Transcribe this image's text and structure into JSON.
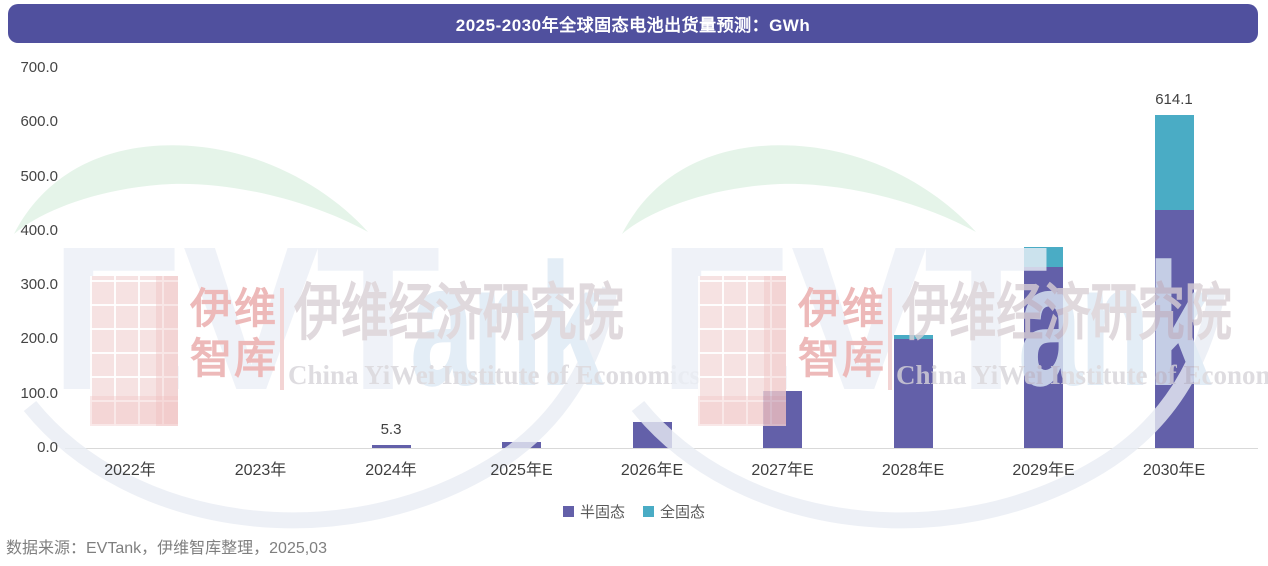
{
  "title": {
    "text": "2025-2030年全球固态电池出货量预测：GWh",
    "bg_color": "#50509E",
    "text_color": "#FFFFFF"
  },
  "chart_data": {
    "type": "bar",
    "stacked": true,
    "categories": [
      "2022年",
      "2023年",
      "2024年",
      "2025年E",
      "2026年E",
      "2027年E",
      "2028年E",
      "2029年E",
      "2030年E"
    ],
    "series": [
      {
        "name": "半固态",
        "color": "#6360A9",
        "values": [
          0,
          0,
          5.3,
          11,
          47,
          105,
          200,
          333,
          438
        ]
      },
      {
        "name": "全固态",
        "color": "#4AACC5",
        "values": [
          0,
          0,
          0,
          0,
          0,
          0,
          8,
          38,
          176.1
        ]
      }
    ],
    "data_labels": {
      "2": "5.3",
      "8": "614.1"
    },
    "title": "2025-2030年全球固态电池出货量预测：GWh",
    "xlabel": "",
    "ylabel": "",
    "ylim": [
      0,
      700
    ],
    "ytick_step": 100,
    "ytick_decimals": 1,
    "grid": false,
    "legend_position": "bottom"
  },
  "source": {
    "text": "数据来源：EVTank，伊维智库整理，2025,03"
  },
  "watermark": {
    "evt": "EVT",
    "ank": "ank",
    "logo_cn_lines": "伊维\n智库",
    "institute_cn": "伊维经济研究院",
    "institute_en": "China YiWei Institute of Economics",
    "accent_green": "#DFF2E4",
    "accent_red": "#E9A8A8",
    "accent_gray": "#E9EDF4"
  }
}
